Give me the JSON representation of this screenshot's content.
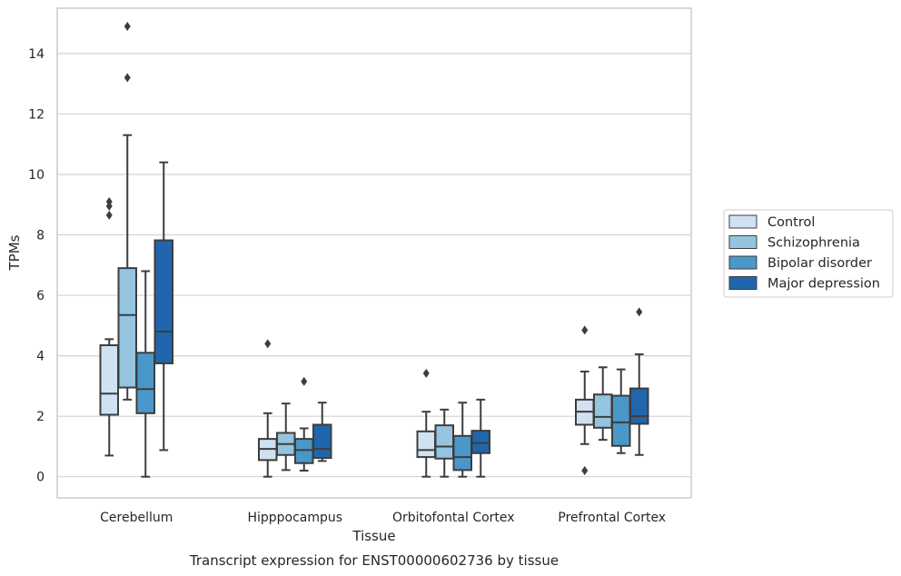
{
  "chart_data": {
    "type": "box",
    "xlabel": "Tissue",
    "ylabel": "TPMs",
    "caption": "Transcript expression for ENST00000602736 by tissue",
    "ylim": [
      -0.7,
      15.5
    ],
    "yticks": [
      0,
      2,
      4,
      6,
      8,
      10,
      12,
      14
    ],
    "grid": "horizontal",
    "legend_position": "right",
    "categories": [
      "Cerebellum",
      "Hipppocampus",
      "Orbitofontal Cortex",
      "Prefrontal Cortex"
    ],
    "series": [
      {
        "name": "Control",
        "color": "#d0e1f2",
        "boxes": [
          {
            "whisker_low": 0.7,
            "q1": 2.05,
            "median": 2.75,
            "q3": 4.35,
            "whisker_high": 4.55,
            "outliers": [
              8.65,
              8.95,
              9.1
            ]
          },
          {
            "whisker_low": 0.0,
            "q1": 0.55,
            "median": 0.92,
            "q3": 1.25,
            "whisker_high": 2.1,
            "outliers": [
              4.4
            ]
          },
          {
            "whisker_low": 0.0,
            "q1": 0.65,
            "median": 0.88,
            "q3": 1.5,
            "whisker_high": 2.15,
            "outliers": [
              3.42
            ]
          },
          {
            "whisker_low": 1.08,
            "q1": 1.72,
            "median": 2.15,
            "q3": 2.55,
            "whisker_high": 3.48,
            "outliers": [
              4.85,
              0.2
            ]
          }
        ]
      },
      {
        "name": "Schizophrenia",
        "color": "#94c4df",
        "boxes": [
          {
            "whisker_low": 2.55,
            "q1": 2.95,
            "median": 5.35,
            "q3": 6.9,
            "whisker_high": 11.3,
            "outliers": [
              13.2,
              14.9
            ]
          },
          {
            "whisker_low": 0.22,
            "q1": 0.72,
            "median": 1.08,
            "q3": 1.45,
            "whisker_high": 2.42,
            "outliers": []
          },
          {
            "whisker_low": 0.0,
            "q1": 0.6,
            "median": 1.0,
            "q3": 1.7,
            "whisker_high": 2.22,
            "outliers": []
          },
          {
            "whisker_low": 1.22,
            "q1": 1.62,
            "median": 1.98,
            "q3": 2.72,
            "whisker_high": 3.62,
            "outliers": []
          }
        ]
      },
      {
        "name": "Bipolar disorder",
        "color": "#4a98c9",
        "boxes": [
          {
            "whisker_low": 0.0,
            "q1": 2.1,
            "median": 2.9,
            "q3": 4.1,
            "whisker_high": 6.8,
            "outliers": []
          },
          {
            "whisker_low": 0.2,
            "q1": 0.45,
            "median": 0.88,
            "q3": 1.25,
            "whisker_high": 1.6,
            "outliers": [
              3.15
            ]
          },
          {
            "whisker_low": 0.0,
            "q1": 0.22,
            "median": 0.65,
            "q3": 1.35,
            "whisker_high": 2.45,
            "outliers": []
          },
          {
            "whisker_low": 0.78,
            "q1": 1.02,
            "median": 1.8,
            "q3": 2.68,
            "whisker_high": 3.55,
            "outliers": []
          }
        ]
      },
      {
        "name": "Major depression",
        "color": "#2166ac",
        "boxes": [
          {
            "whisker_low": 0.88,
            "q1": 3.75,
            "median": 4.8,
            "q3": 7.82,
            "whisker_high": 10.4,
            "outliers": []
          },
          {
            "whisker_low": 0.52,
            "q1": 0.62,
            "median": 0.92,
            "q3": 1.72,
            "whisker_high": 2.45,
            "outliers": []
          },
          {
            "whisker_low": 0.0,
            "q1": 0.78,
            "median": 1.12,
            "q3": 1.52,
            "whisker_high": 2.55,
            "outliers": []
          },
          {
            "whisker_low": 0.72,
            "q1": 1.75,
            "median": 2.0,
            "q3": 2.92,
            "whisker_high": 4.05,
            "outliers": [
              5.45
            ]
          }
        ]
      }
    ]
  }
}
